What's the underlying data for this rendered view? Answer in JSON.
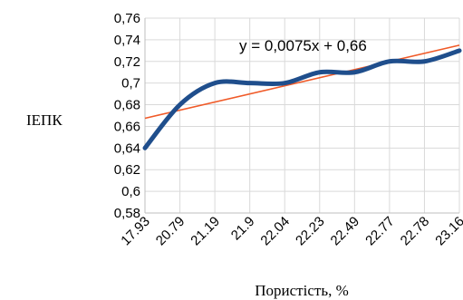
{
  "chart_data": {
    "type": "line",
    "categories": [
      "17.93",
      "20.79",
      "21.19",
      "21.9",
      "22.04",
      "22.23",
      "22.49",
      "22.77",
      "22.78",
      "23.16"
    ],
    "series": [
      {
        "values": [
          0.64,
          0.68,
          0.7,
          0.7,
          0.7,
          0.71,
          0.71,
          0.72,
          0.72,
          0.73
        ],
        "color": "#1f4e8c"
      }
    ],
    "trendline": {
      "slope": 0.0075,
      "intercept": 0.66,
      "equation": "y = 0,0075x + 0,66",
      "color": "#f05a28"
    },
    "yticks": [
      "0,58",
      "0,6",
      "0,62",
      "0,64",
      "0,66",
      "0,68",
      "0,7",
      "0,72",
      "0,74",
      "0,76"
    ],
    "ylim": [
      0.58,
      0.76
    ],
    "xlabel": "Пористість, %",
    "ylabel": "ІЕПК",
    "grid": true
  }
}
